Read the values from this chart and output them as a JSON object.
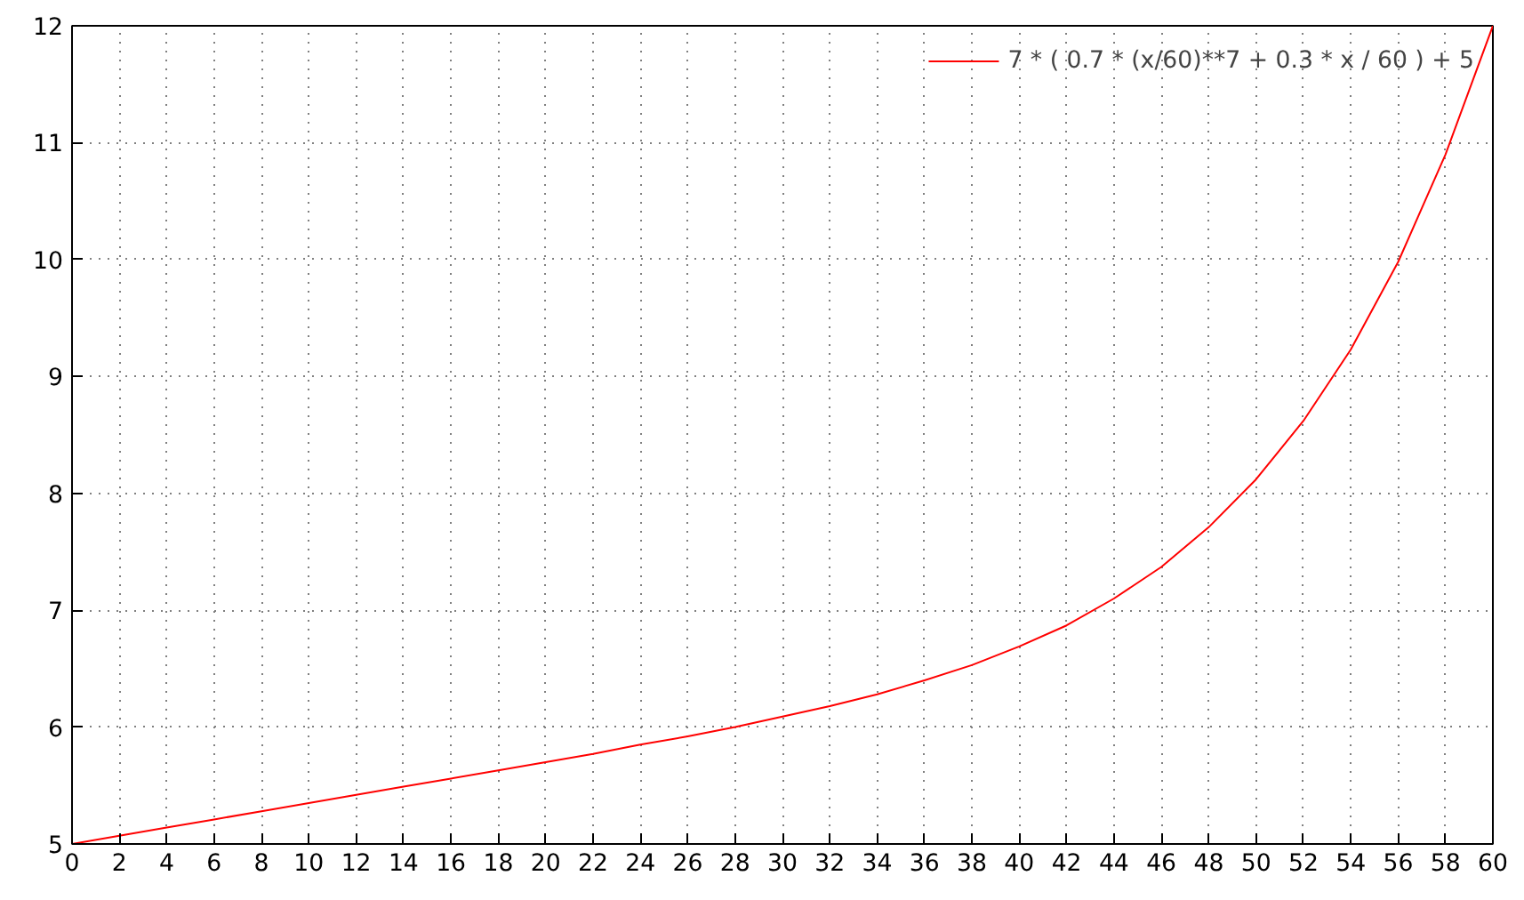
{
  "chart_data": {
    "type": "line",
    "x": [
      0,
      2,
      4,
      6,
      8,
      10,
      12,
      14,
      16,
      18,
      20,
      22,
      24,
      26,
      28,
      30,
      32,
      34,
      36,
      38,
      40,
      42,
      44,
      46,
      48,
      50,
      52,
      54,
      56,
      58,
      60
    ],
    "series": [
      {
        "name": "7 * ( 0.7 * (x/60)**7 + 0.3 * x / 60 ) + 5",
        "color": "#ff0000",
        "values": [
          5.0,
          5.07,
          5.14,
          5.21,
          5.28,
          5.35,
          5.42,
          5.49,
          5.56,
          5.63,
          5.7,
          5.77,
          5.85,
          5.92,
          6.0,
          6.09,
          6.18,
          6.28,
          6.4,
          6.53,
          6.69,
          6.87,
          7.1,
          7.37,
          7.71,
          8.12,
          8.62,
          9.23,
          9.98,
          10.9,
          12.0
        ]
      }
    ],
    "xlim": [
      0,
      60
    ],
    "ylim": [
      5,
      12
    ],
    "xticks": [
      0,
      2,
      4,
      6,
      8,
      10,
      12,
      14,
      16,
      18,
      20,
      22,
      24,
      26,
      28,
      30,
      32,
      34,
      36,
      38,
      40,
      42,
      44,
      46,
      48,
      50,
      52,
      54,
      56,
      58,
      60
    ],
    "yticks": [
      5,
      6,
      7,
      8,
      9,
      10,
      11,
      12
    ],
    "grid": true,
    "legend": "top right",
    "marker": "none",
    "line_style": "solid"
  }
}
